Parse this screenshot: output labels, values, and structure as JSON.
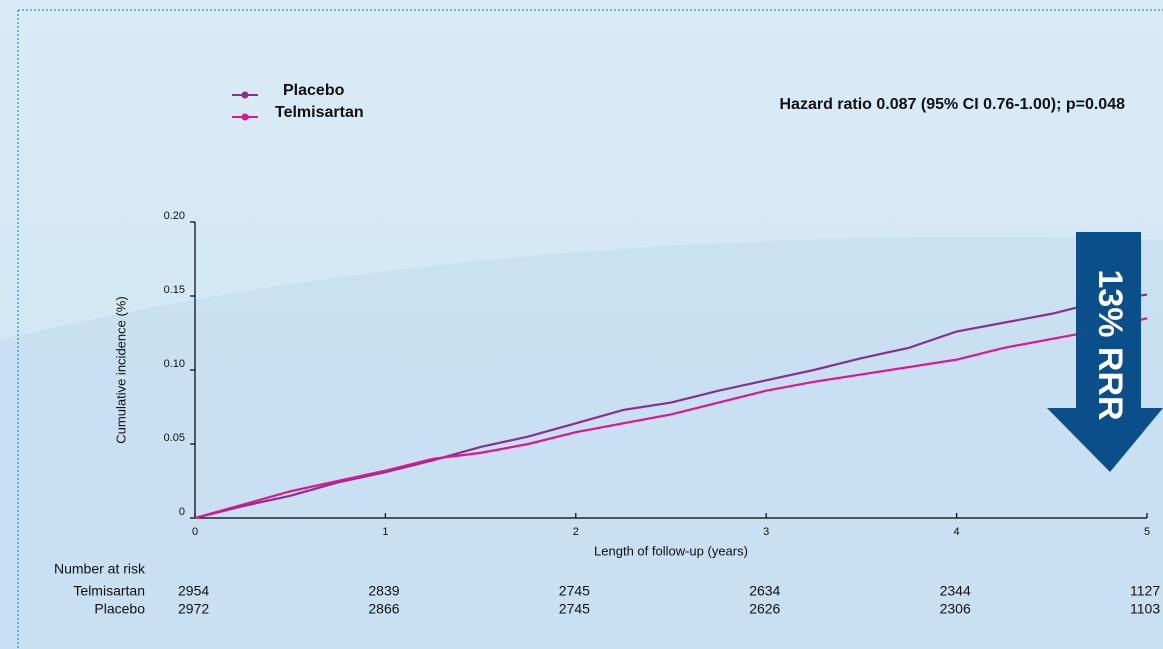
{
  "chart_data": {
    "type": "line",
    "annotation": "Hazard ratio 0.087 (95% CI 0.76-1.00); p=0.048",
    "arrow_label": "13% RRR",
    "x_label": "Length of follow-up (years)",
    "y_label": "Cumulative  incidence (%)",
    "x": [
      0,
      0.25,
      0.5,
      0.75,
      1,
      1.25,
      1.5,
      1.75,
      2,
      2.25,
      2.5,
      2.75,
      3,
      3.25,
      3.5,
      3.75,
      4,
      4.25,
      4.5,
      4.75,
      5
    ],
    "series": [
      {
        "name": "Placebo",
        "color": "#8b2f8f",
        "values": [
          0,
          0.008,
          0.015,
          0.024,
          0.031,
          0.039,
          0.048,
          0.055,
          0.064,
          0.073,
          0.078,
          0.086,
          0.093,
          0.1,
          0.108,
          0.115,
          0.126,
          0.132,
          0.138,
          0.146,
          0.151
        ]
      },
      {
        "name": "Telmisartan",
        "color": "#e0168c",
        "values": [
          0,
          0.009,
          0.018,
          0.025,
          0.032,
          0.04,
          0.044,
          0.05,
          0.058,
          0.064,
          0.07,
          0.078,
          0.086,
          0.092,
          0.097,
          0.102,
          0.107,
          0.115,
          0.121,
          0.127,
          0.135
        ]
      }
    ],
    "xlim": [
      0,
      5
    ],
    "xticks": [
      0,
      1,
      2,
      3,
      4,
      5
    ],
    "ylim": [
      0,
      0.2
    ],
    "yticks": [
      0,
      0.05,
      {
        "value": 0.1,
        "label": "0.10"
      },
      0.15,
      {
        "value": 0.2,
        "label": "0.20"
      }
    ],
    "risk_table": {
      "title": "Number at risk",
      "rows": [
        {
          "name": "Telmisartan",
          "values": [
            "2954",
            "2839",
            "2745",
            "2634",
            "2344",
            "1127"
          ]
        },
        {
          "name": "Placebo",
          "values": [
            "2972",
            "2866",
            "2745",
            "2626",
            "2306",
            "1103"
          ]
        }
      ]
    }
  }
}
